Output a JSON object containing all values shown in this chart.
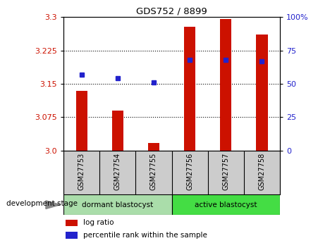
{
  "title": "GDS752 / 8899",
  "samples": [
    "GSM27753",
    "GSM27754",
    "GSM27755",
    "GSM27756",
    "GSM27757",
    "GSM27758"
  ],
  "log_ratio": [
    3.135,
    3.09,
    3.018,
    3.278,
    3.295,
    3.26
  ],
  "percentile_rank": [
    57,
    54,
    51,
    68,
    68,
    67
  ],
  "baseline": 3.0,
  "ylim_left": [
    3.0,
    3.3
  ],
  "ylim_right": [
    0,
    100
  ],
  "yticks_left": [
    3.0,
    3.075,
    3.15,
    3.225,
    3.3
  ],
  "yticks_right": [
    0,
    25,
    50,
    75,
    100
  ],
  "bar_color": "#cc1100",
  "dot_color": "#2222cc",
  "bar_width": 0.32,
  "groups": [
    {
      "label": "dormant blastocyst",
      "n": 3,
      "color": "#aaddaa"
    },
    {
      "label": "active blastocyst",
      "n": 3,
      "color": "#44dd44"
    }
  ],
  "group_label": "development stage",
  "legend_items": [
    {
      "label": "log ratio",
      "color": "#cc1100"
    },
    {
      "label": "percentile rank within the sample",
      "color": "#2222cc"
    }
  ],
  "tick_color_left": "#cc1100",
  "tick_color_right": "#2222cc",
  "sample_bg_color": "#cccccc",
  "plot_bg": "#ffffff",
  "figure_bg": "#ffffff"
}
